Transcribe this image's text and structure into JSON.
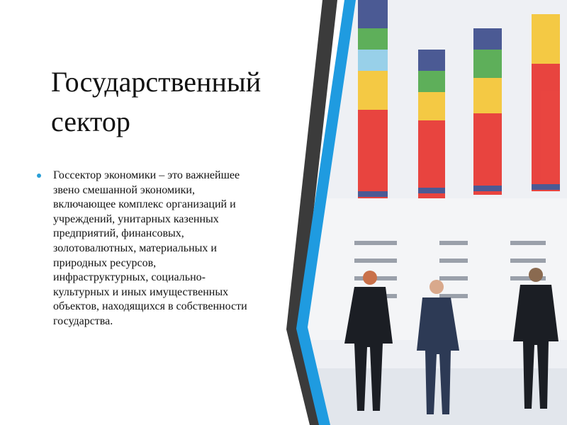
{
  "slide": {
    "title": "Государственный сектор",
    "bullets": [
      "Госсектор экономики – это важнейшее звено смешанной экономики, включающее комплекс организаций и учреждений, унитарных казенных предприятий, финансовых, золотовалютных, материальных и природных ресурсов, инфраструктурных, социально-культурных и иных имущественных объектов, находящихся в собственности государства."
    ]
  }
}
